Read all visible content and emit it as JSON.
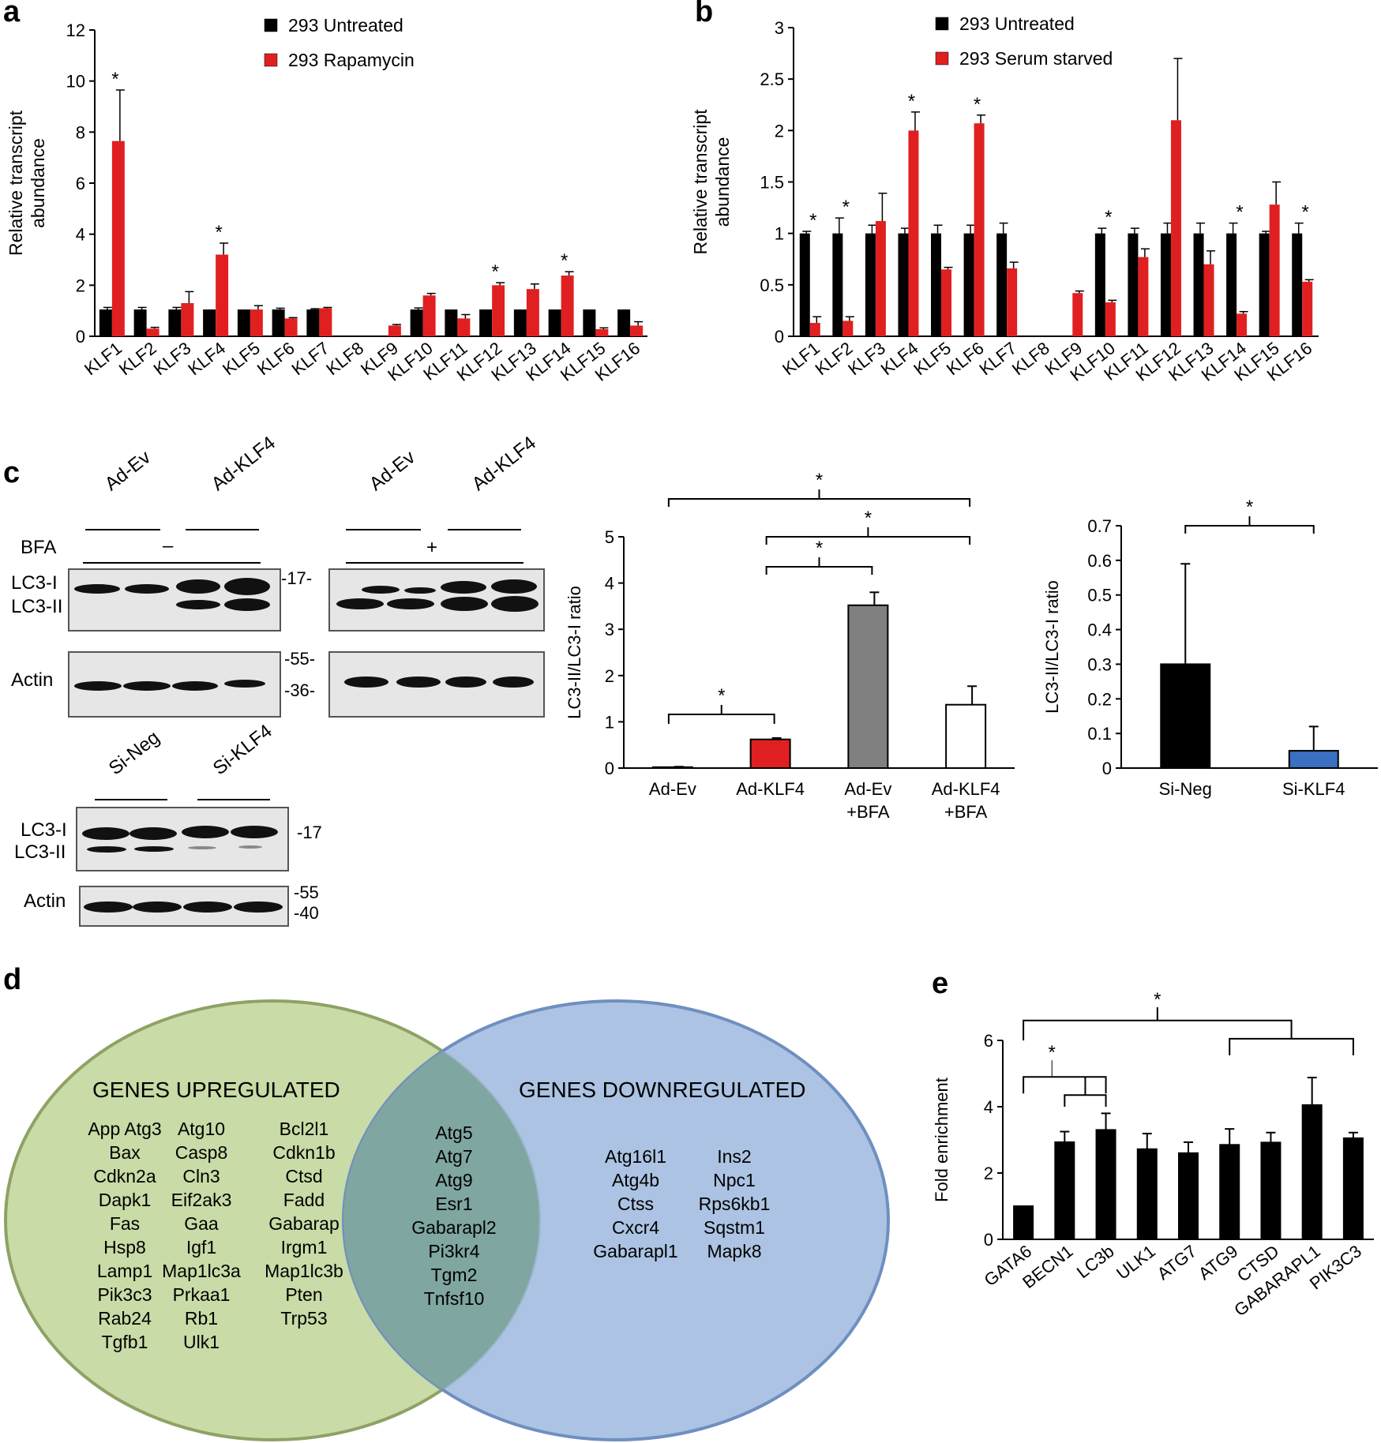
{
  "panels": {
    "a": "a",
    "b": "b",
    "c": "c",
    "d": "d",
    "e": "e"
  },
  "chart_data": [
    {
      "id": "a",
      "type": "bar",
      "ylabel": "Relative transcript abundance",
      "ylabel_lines": [
        "Relative transcript",
        "abundance"
      ],
      "ylim": [
        0,
        12
      ],
      "yticks": [
        0,
        2,
        4,
        6,
        8,
        10,
        12
      ],
      "categories": [
        "KLF1",
        "KLF2",
        "KLF3",
        "KLF4",
        "KLF5",
        "KLF6",
        "KLF7",
        "KLF8",
        "KLF9",
        "KLF10",
        "KLF11",
        "KLF12",
        "KLF13",
        "KLF14",
        "KLF15",
        "KLF16"
      ],
      "series": [
        {
          "name": "293 Untreated",
          "color": "#000000",
          "values": [
            1.05,
            1.05,
            1.05,
            1.05,
            1.05,
            1.05,
            1.05,
            0,
            0,
            1.05,
            1.05,
            1.05,
            1.05,
            1.05,
            1.05,
            1.05
          ],
          "errors": [
            0.08,
            0.08,
            0.08,
            0,
            0,
            0.05,
            0.03,
            0,
            0,
            0.06,
            0,
            0,
            0,
            0,
            0,
            0
          ]
        },
        {
          "name": "293 Rapamycin",
          "color": "#e02020",
          "values": [
            7.65,
            0.3,
            1.3,
            3.2,
            1.05,
            0.7,
            1.1,
            0,
            0.42,
            1.6,
            0.7,
            2.0,
            1.85,
            2.38,
            0.28,
            0.42
          ],
          "errors": [
            2.0,
            0.05,
            0.45,
            0.45,
            0.15,
            0.03,
            0.03,
            0,
            0.04,
            0.08,
            0.15,
            0.1,
            0.2,
            0.15,
            0.05,
            0.15
          ]
        }
      ],
      "significant": [
        "KLF1",
        "KLF4",
        "KLF12",
        "KLF14"
      ],
      "legend": "top-right"
    },
    {
      "id": "b",
      "type": "bar",
      "ylabel": "Relative transcript abundance",
      "ylabel_lines": [
        "Relative transcript",
        "abundance"
      ],
      "ylim": [
        0,
        3
      ],
      "yticks": [
        0,
        0.5,
        1,
        1.5,
        2,
        2.5,
        3
      ],
      "categories": [
        "KLF1",
        "KLF2",
        "KLF3",
        "KLF4",
        "KLF5",
        "KLF6",
        "KLF7",
        "KLF8",
        "KLF9",
        "KLF10",
        "KLF11",
        "KLF12",
        "KLF13",
        "KLF14",
        "KLF15",
        "KLF16"
      ],
      "series": [
        {
          "name": "293 Untreated",
          "color": "#000000",
          "values": [
            1,
            1,
            1,
            1,
            1,
            1,
            1,
            0,
            0,
            1,
            1,
            1,
            1,
            1,
            1,
            1
          ],
          "errors": [
            0.02,
            0.15,
            0.08,
            0.05,
            0.08,
            0.08,
            0.1,
            0,
            0,
            0.05,
            0.05,
            0.1,
            0.1,
            0.1,
            0.02,
            0.1
          ]
        },
        {
          "name": "293 Serum starved",
          "color": "#e02020",
          "values": [
            0.13,
            0.15,
            1.12,
            2.0,
            0.65,
            2.07,
            0.66,
            0,
            0.42,
            0.33,
            0.77,
            2.1,
            0.7,
            0.22,
            1.28,
            0.53
          ],
          "errors": [
            0.06,
            0.04,
            0.27,
            0.18,
            0.02,
            0.08,
            0.06,
            0,
            0.02,
            0.02,
            0.08,
            0.6,
            0.13,
            0.02,
            0.22,
            0.02
          ]
        }
      ],
      "significant": [
        "KLF1",
        "KLF2",
        "KLF4",
        "KLF6",
        "KLF10",
        "KLF14",
        "KLF16"
      ],
      "legend": "top-right"
    },
    {
      "id": "c-mid",
      "type": "bar",
      "ylabel": "LC3-II/LC3-I ratio",
      "ylim": [
        0,
        5
      ],
      "yticks": [
        0,
        1,
        2,
        3,
        4,
        5
      ],
      "categories": [
        [
          "Ad-Ev"
        ],
        [
          "Ad-KLF4"
        ],
        [
          "Ad-Ev",
          "+BFA"
        ],
        [
          "Ad-KLF4",
          "+BFA"
        ]
      ],
      "values": [
        0.02,
        0.62,
        3.52,
        1.37
      ],
      "errors": [
        0.01,
        0.03,
        0.28,
        0.4
      ],
      "colors": [
        "#000000",
        "#e02020",
        "#808080",
        "#ffffff"
      ],
      "brackets": [
        {
          "from": 0,
          "to": 1,
          "label": "*"
        },
        {
          "from": 1,
          "to": 2,
          "label": "*"
        },
        {
          "from": 1,
          "to": 3,
          "label": "*"
        },
        {
          "from": 0,
          "to": 3,
          "label": "*"
        }
      ]
    },
    {
      "id": "c-right",
      "type": "bar",
      "ylabel": "LC3-II/LC3-I ratio",
      "ylim": [
        0,
        0.7
      ],
      "yticks": [
        0,
        0.1,
        0.2,
        0.3,
        0.4,
        0.5,
        0.6,
        0.7
      ],
      "categories": [
        "Si-Neg",
        "Si-KLF4"
      ],
      "values": [
        0.3,
        0.05
      ],
      "errors": [
        0.29,
        0.07
      ],
      "colors": [
        "#000000",
        "#3a6fc1"
      ],
      "brackets": [
        {
          "from": 0,
          "to": 1,
          "label": "*"
        }
      ]
    },
    {
      "id": "e",
      "type": "bar",
      "ylabel": "Fold enrichment",
      "ylim": [
        0,
        6
      ],
      "yticks": [
        0,
        2,
        4,
        6
      ],
      "categories": [
        "GATA6",
        "BECN1",
        "LC3b",
        "ULK1",
        "ATG7",
        "ATG9",
        "CTSD",
        "GABARAPL1",
        "PIK3C3"
      ],
      "values": [
        1.0,
        2.93,
        3.3,
        2.72,
        2.6,
        2.85,
        2.92,
        4.05,
        3.05
      ],
      "errors": [
        0,
        0.32,
        0.5,
        0.47,
        0.33,
        0.48,
        0.3,
        0.83,
        0.17
      ],
      "colors": [
        "#000000"
      ],
      "significant_note": "*"
    }
  ],
  "western": {
    "top_left_labels": [
      "Ad-Ev",
      "Ad-KLF4"
    ],
    "top_right_labels": [
      "Ad-Ev",
      "Ad-KLF4"
    ],
    "bfa_label": "BFA",
    "bfa_minus": "–",
    "bfa_plus": "+",
    "lc3_i": "LC3-I",
    "lc3_ii": "LC3-II",
    "actin": "Actin",
    "mw_17a": "-17-",
    "mw_55": "-55-",
    "mw_36": "-36-",
    "si_labels": [
      "Si-Neg",
      "Si-KLF4"
    ],
    "mw_17b": "-17",
    "mw_55b": "-55",
    "mw_40": "-40"
  },
  "venn": {
    "left_title": "GENES UPREGULATED",
    "right_title": "GENES DOWNREGULATED",
    "left_col1": [
      "App Atg3",
      "Bax",
      "Cdkn2a",
      "Dapk1",
      "Fas",
      "Hsp8",
      "Lamp1",
      "Pik3c3",
      "Rab24",
      "Tgfb1"
    ],
    "left_col2": [
      "Atg10",
      "Casp8",
      "Cln3",
      "Eif2ak3",
      "Gaa",
      "Igf1",
      "Map1lc3a",
      "Prkaa1",
      "Rb1",
      "Ulk1"
    ],
    "left_col3": [
      "Bcl2l1",
      "Cdkn1b",
      "Ctsd",
      "Fadd",
      "Gabarap",
      "Irgm1",
      "Map1lc3b",
      "Pten",
      "Trp53"
    ],
    "overlap": [
      "Atg5",
      "Atg7",
      "Atg9",
      "Esr1",
      "Gabarapl2",
      "Pi3kr4",
      "Tgm2",
      "Tnfsf10"
    ],
    "right_col1": [
      "Atg16l1",
      "Atg4b",
      "Ctss",
      "Cxcr4",
      "Gabarapl1"
    ],
    "right_col2": [
      "Ins2",
      "Npc1",
      "Rps6kb1",
      "Sqstm1",
      "Mapk8"
    ],
    "left_color": "#c5d8a0",
    "right_color": "#93afd8"
  }
}
